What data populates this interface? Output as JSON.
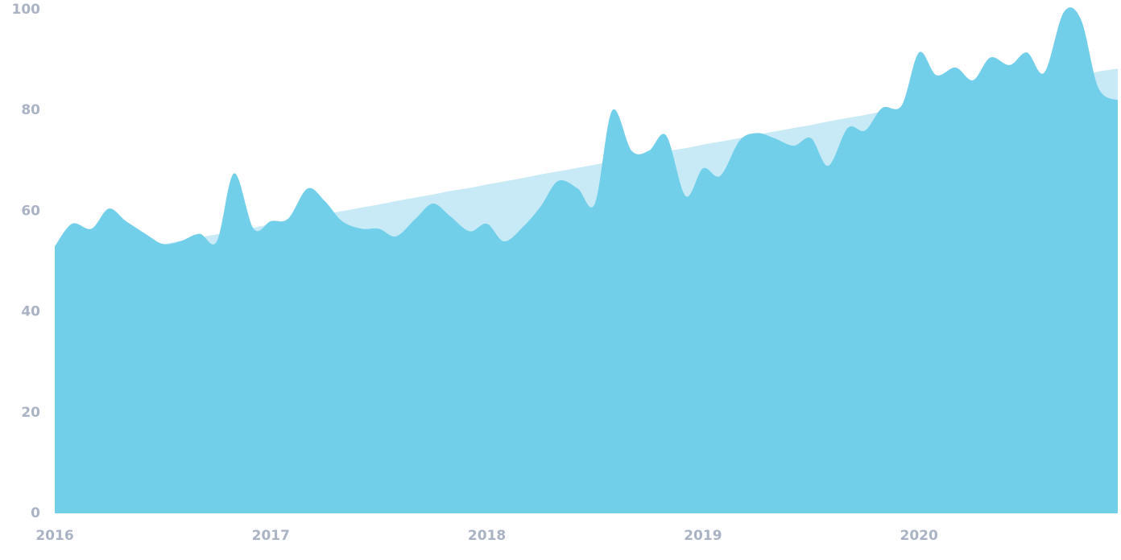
{
  "chart_data": {
    "type": "area",
    "x": [
      2016.0,
      2016.08,
      2016.17,
      2016.25,
      2016.33,
      2016.42,
      2016.5,
      2016.58,
      2016.67,
      2016.75,
      2016.83,
      2016.92,
      2017.0,
      2017.08,
      2017.17,
      2017.25,
      2017.33,
      2017.42,
      2017.5,
      2017.58,
      2017.67,
      2017.75,
      2017.83,
      2017.92,
      2018.0,
      2018.08,
      2018.17,
      2018.25,
      2018.33,
      2018.42,
      2018.5,
      2018.58,
      2018.67,
      2018.75,
      2018.83,
      2018.92,
      2019.0,
      2019.08,
      2019.17,
      2019.25,
      2019.33,
      2019.42,
      2019.5,
      2019.58,
      2019.67,
      2019.75,
      2019.83,
      2019.92,
      2020.0,
      2020.08,
      2020.17,
      2020.25,
      2020.33,
      2020.42,
      2020.5,
      2020.58,
      2020.67,
      2020.75,
      2020.83,
      2020.92
    ],
    "series": [
      {
        "color": "#c7eaf6",
        "values": [
          49.5,
          50.2,
          50.8,
          51.5,
          52.1,
          52.8,
          53.4,
          54.1,
          54.8,
          55.4,
          56.1,
          56.7,
          57.4,
          58.1,
          58.7,
          59.4,
          60.0,
          60.7,
          61.3,
          62.0,
          62.7,
          63.3,
          64.0,
          64.6,
          65.3,
          65.9,
          66.6,
          67.3,
          67.9,
          68.6,
          69.2,
          69.9,
          70.6,
          71.2,
          71.9,
          72.5,
          73.2,
          73.8,
          74.5,
          75.2,
          75.8,
          76.5,
          77.1,
          77.8,
          78.5,
          79.1,
          79.8,
          80.4,
          81.1,
          81.7,
          82.4,
          83.1,
          83.7,
          84.4,
          85.0,
          85.7,
          86.3,
          87.0,
          87.7,
          88.3
        ]
      },
      {
        "color": "#72cfea",
        "values": [
          53,
          57.5,
          56.5,
          60.5,
          58,
          55.5,
          53.5,
          54,
          55.5,
          54,
          67.5,
          56.5,
          58,
          58.5,
          64.5,
          62,
          58,
          56.5,
          56.5,
          55,
          58.5,
          61.5,
          59,
          56,
          57.5,
          54,
          57,
          61,
          66,
          64.5,
          61.5,
          80,
          72,
          72,
          75,
          63,
          68.5,
          67,
          74,
          75.5,
          74.5,
          73,
          74.5,
          69,
          76.5,
          76,
          80.5,
          81,
          91.5,
          87,
          88.5,
          86,
          90.5,
          89,
          91.5,
          87.5,
          99.5,
          98,
          84.5,
          82
        ]
      }
    ],
    "xlim": [
      2016,
      2020.92
    ],
    "xticks": [
      2016,
      2017,
      2018,
      2019,
      2020
    ],
    "ylim": [
      0,
      100
    ],
    "yticks": [
      0,
      20,
      40,
      60,
      80,
      100
    ]
  }
}
